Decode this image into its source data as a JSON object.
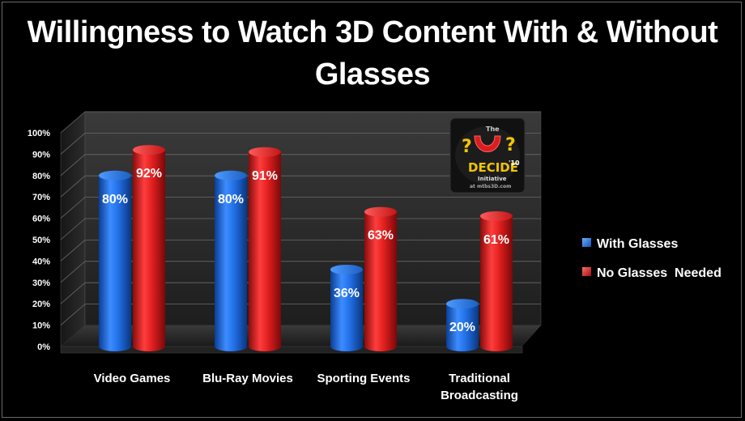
{
  "chart_data": {
    "type": "bar",
    "title": "Willingness to Watch 3D Content With & Without Glasses",
    "categories": [
      "Video Games",
      "Blu-Ray Movies",
      "Sporting Events",
      "Traditional Broadcasting"
    ],
    "series": [
      {
        "name": "With Glasses",
        "values": [
          80,
          80,
          36,
          20
        ],
        "labels": [
          "80%",
          "80%",
          "36%",
          "20%"
        ],
        "color": "#1f6fe0"
      },
      {
        "name": "No Glasses  Needed",
        "values": [
          92,
          91,
          63,
          61
        ],
        "labels": [
          "92%",
          "91%",
          "63%",
          "61%"
        ],
        "color": "#d81e1e"
      }
    ],
    "y_ticks": [
      "0%",
      "10%",
      "20%",
      "30%",
      "40%",
      "50%",
      "60%",
      "70%",
      "80%",
      "90%",
      "100%"
    ],
    "ylim": [
      0,
      100
    ],
    "legend_position": "right",
    "grid": true
  },
  "logo": {
    "top_text": "The",
    "main_text": "DECIDE",
    "year_text": "'10",
    "sub_text": "Initiative",
    "url_text": "at mtbs3D.com"
  }
}
